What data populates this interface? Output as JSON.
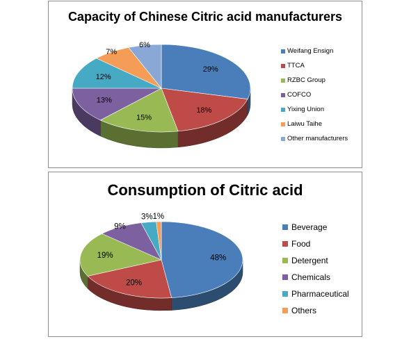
{
  "chart_data": [
    {
      "type": "pie",
      "title": "Capacity of Chinese Citric acid manufacturers",
      "categories": [
        "Weifang Ensign",
        "TTCA",
        "RZBC Group",
        "COFCO",
        "Yixing Union",
        "Laiwu Taihe",
        "Other manufacturers"
      ],
      "values": [
        29,
        18,
        15,
        13,
        12,
        7,
        6
      ],
      "labels": [
        "29%",
        "18%",
        "15%",
        "13%",
        "12%",
        "7%",
        "6%"
      ],
      "colors": [
        "#4a7ebb",
        "#be4b48",
        "#98b954",
        "#7d60a0",
        "#46aac5",
        "#f59d56",
        "#8aa8d5"
      ],
      "legend_position": "right"
    },
    {
      "type": "pie",
      "title": "Consumption of Citric acid",
      "categories": [
        "Beverage",
        "Food",
        "Detergent",
        "Chemicals",
        "Pharmaceutical",
        "Others"
      ],
      "values": [
        48,
        20,
        19,
        9,
        3,
        1
      ],
      "labels": [
        "48%",
        "20%",
        "19%",
        "9%",
        "3%",
        "1%"
      ],
      "colors": [
        "#4a7ebb",
        "#be4b48",
        "#98b954",
        "#7d60a0",
        "#46aac5",
        "#f59d56"
      ],
      "legend_position": "right"
    }
  ]
}
